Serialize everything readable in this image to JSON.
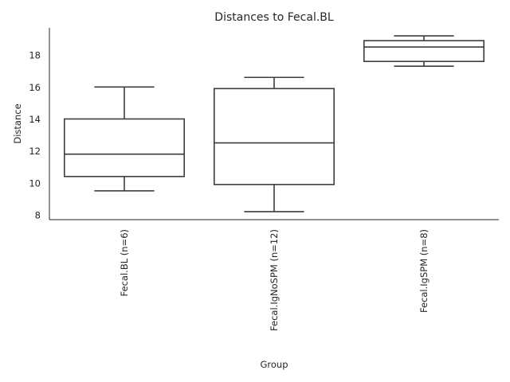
{
  "chart_data": {
    "type": "box",
    "title": "Distances to Fecal.BL",
    "xlabel": "Group",
    "ylabel": "Distance",
    "ylim": [
      7.7,
      19.7
    ],
    "yticks": [
      8,
      10,
      12,
      14,
      16,
      18
    ],
    "grid": false,
    "categories": [
      "Fecal.BL (n=6)",
      "Fecal.IgNoSPM (n=12)",
      "Fecal.IgSPM (n=8)"
    ],
    "boxes": [
      {
        "name": "Fecal.BL (n=6)",
        "whisker_low": 9.5,
        "q1": 10.4,
        "median": 11.8,
        "q3": 14.0,
        "whisker_high": 16.0
      },
      {
        "name": "Fecal.IgNoSPM (n=12)",
        "whisker_low": 8.2,
        "q1": 9.9,
        "median": 12.5,
        "q3": 15.9,
        "whisker_high": 16.6
      },
      {
        "name": "Fecal.IgSPM (n=8)",
        "whisker_low": 17.3,
        "q1": 17.6,
        "median": 18.5,
        "q3": 18.9,
        "whisker_high": 19.2
      }
    ]
  }
}
